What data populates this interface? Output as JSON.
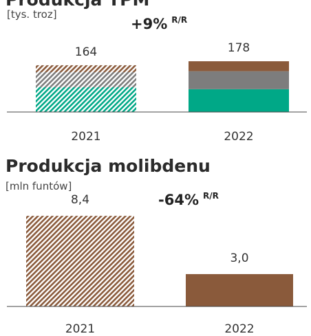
{
  "chart_data": [
    {
      "type": "bar",
      "title": "Produkcja TPM",
      "subtitle": "[tys. troz]",
      "annotation": {
        "text": "+9%",
        "superscript": "R/R"
      },
      "categories": [
        "2021",
        "2022"
      ],
      "series": [
        {
          "color": "#00a887",
          "values": [
            87,
            80
          ]
        },
        {
          "color": "#7d7d7d",
          "values": [
            53,
            63
          ]
        },
        {
          "color": "#8a5a3b",
          "values": [
            24,
            35
          ]
        }
      ],
      "totals": [
        164,
        178
      ],
      "hatched": [
        true,
        false
      ],
      "ylim": [
        0,
        200
      ]
    },
    {
      "type": "bar",
      "title": "Produkcja molibdenu",
      "subtitle": "[mln funtów]",
      "annotation": {
        "text": "-64%",
        "superscript": "R/R"
      },
      "categories": [
        "2021",
        "2022"
      ],
      "series": [
        {
          "color": "#8a5a3b",
          "values": [
            8.4,
            3.0
          ],
          "value_labels": [
            "8,4",
            "3,0"
          ]
        }
      ],
      "hatched": [
        true,
        false
      ],
      "ylim": [
        0,
        10
      ]
    }
  ]
}
